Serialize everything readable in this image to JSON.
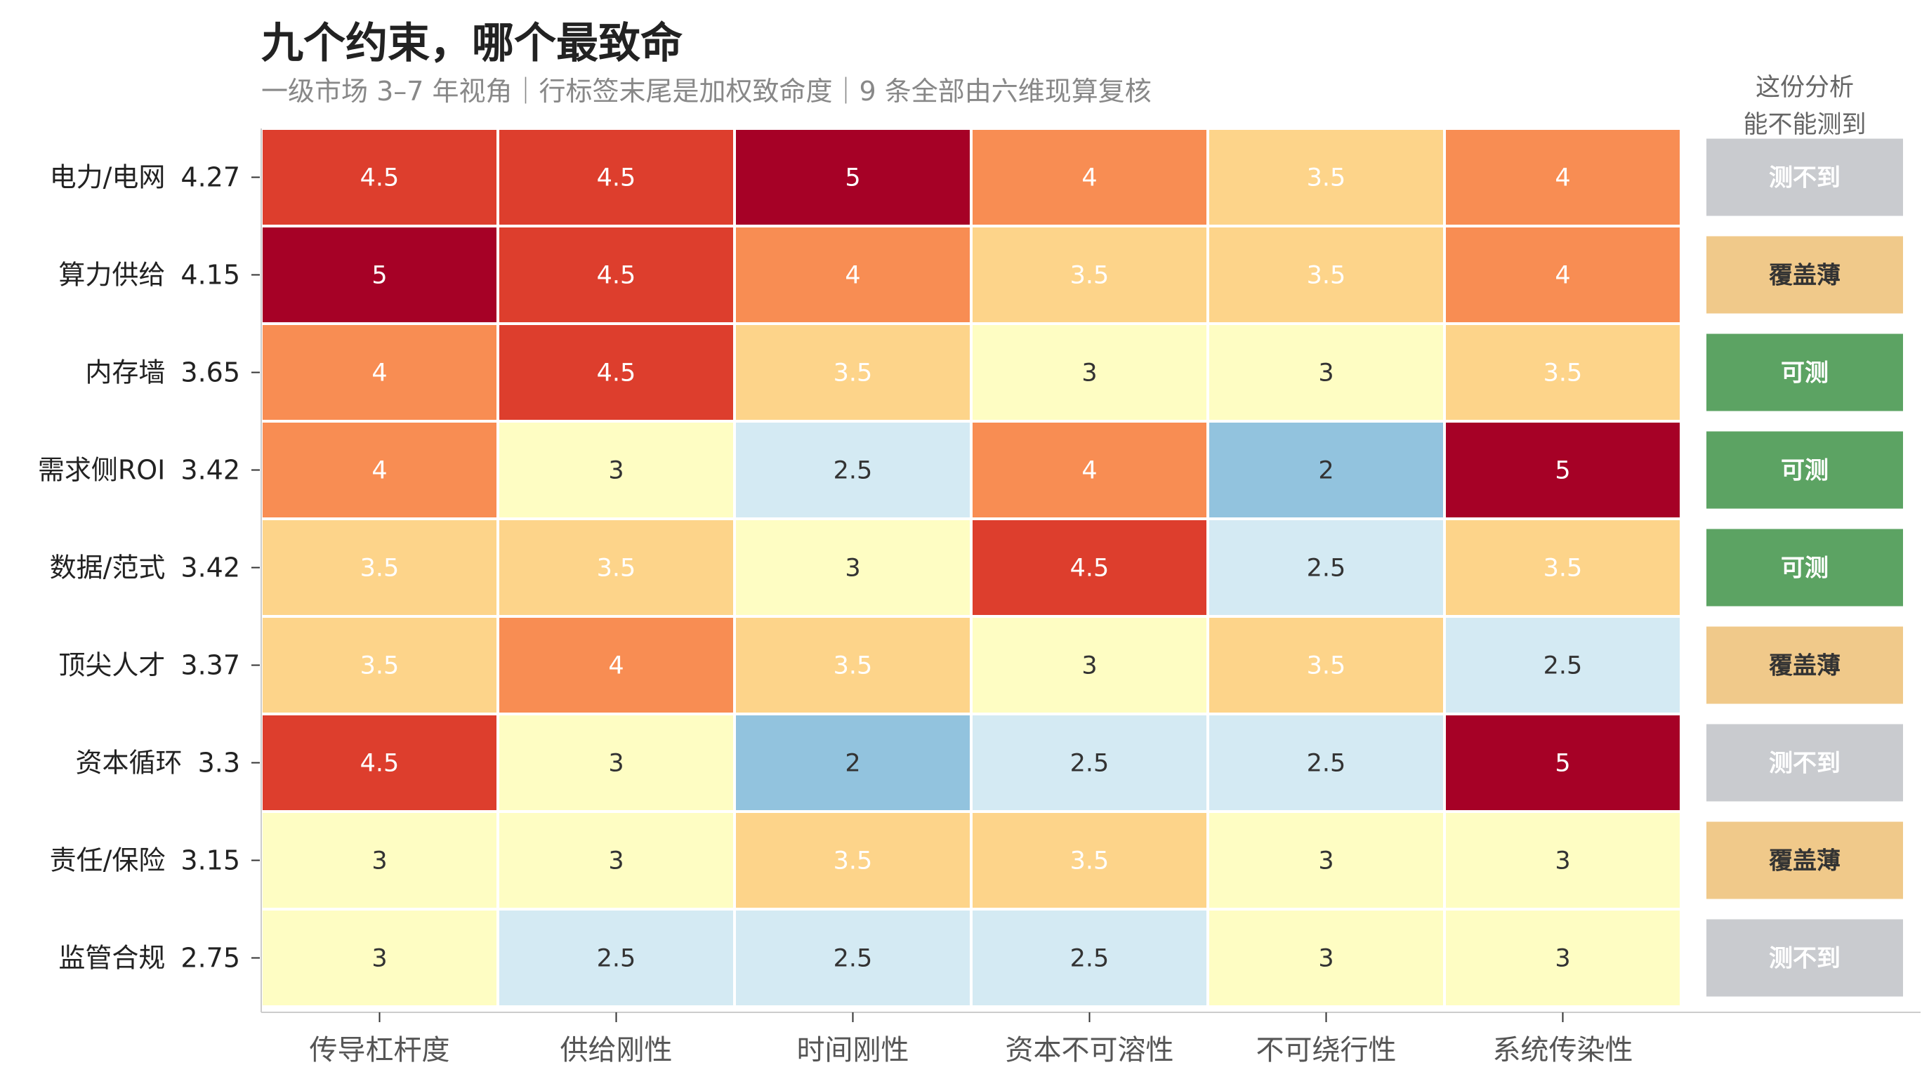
{
  "chart_data": {
    "type": "heatmap",
    "title": "九个约束，哪个最致命",
    "subtitle": "一级市场 3–7 年视角｜行标签末尾是加权致命度｜9 条全部由六维现算复核",
    "columns": [
      "传导杠杆度",
      "供给刚性",
      "时间刚性",
      "资本不可溶性",
      "不可绕行性",
      "系统传染性"
    ],
    "rows": [
      {
        "name": "电力/电网",
        "score": "4.27",
        "values": [
          4.5,
          4.5,
          5,
          4,
          3.5,
          4
        ],
        "status": "测不到"
      },
      {
        "name": "算力供给",
        "score": "4.15",
        "values": [
          5,
          4.5,
          4,
          3.5,
          3.5,
          4
        ],
        "status": "覆盖薄"
      },
      {
        "name": "内存墙",
        "score": "3.65",
        "values": [
          4,
          4.5,
          3.5,
          3,
          3,
          3.5
        ],
        "status": "可测"
      },
      {
        "name": "需求侧ROI",
        "score": "3.42",
        "values": [
          4,
          3,
          2.5,
          4,
          2,
          5
        ],
        "status": "可测"
      },
      {
        "name": "数据/范式",
        "score": "3.42",
        "values": [
          3.5,
          3.5,
          3,
          4.5,
          2.5,
          3.5
        ],
        "status": "可测"
      },
      {
        "name": "顶尖人才",
        "score": "3.37",
        "values": [
          3.5,
          4,
          3.5,
          3,
          3.5,
          2.5
        ],
        "status": "覆盖薄"
      },
      {
        "name": "资本循环",
        "score": "3.3",
        "values": [
          4.5,
          3,
          2,
          2.5,
          2.5,
          5
        ],
        "status": "测不到"
      },
      {
        "name": "责任/保险",
        "score": "3.15",
        "values": [
          3,
          3,
          3.5,
          3.5,
          3,
          3
        ],
        "status": "覆盖薄"
      },
      {
        "name": "监管合规",
        "score": "2.75",
        "values": [
          3,
          2.5,
          2.5,
          2.5,
          3,
          3
        ],
        "status": "测不到"
      }
    ],
    "status_header": [
      "这份分析",
      "能不能测到"
    ],
    "value_colors": {
      "2": "#92c3de",
      "2.5": "#d4eaf3",
      "3": "#fefdc3",
      "3.5": "#fdd48a",
      "4": "#f88d53",
      "4.5": "#dd3e2d",
      "5": "#a60126"
    },
    "status_colors": {
      "测不到": "#c9cbcf",
      "覆盖薄": "#f0c98a",
      "可测": "#5ca363"
    },
    "status_text_colors": {
      "测不到": "#ffffff",
      "覆盖薄": "#333333",
      "可测": "#ffffff"
    }
  }
}
